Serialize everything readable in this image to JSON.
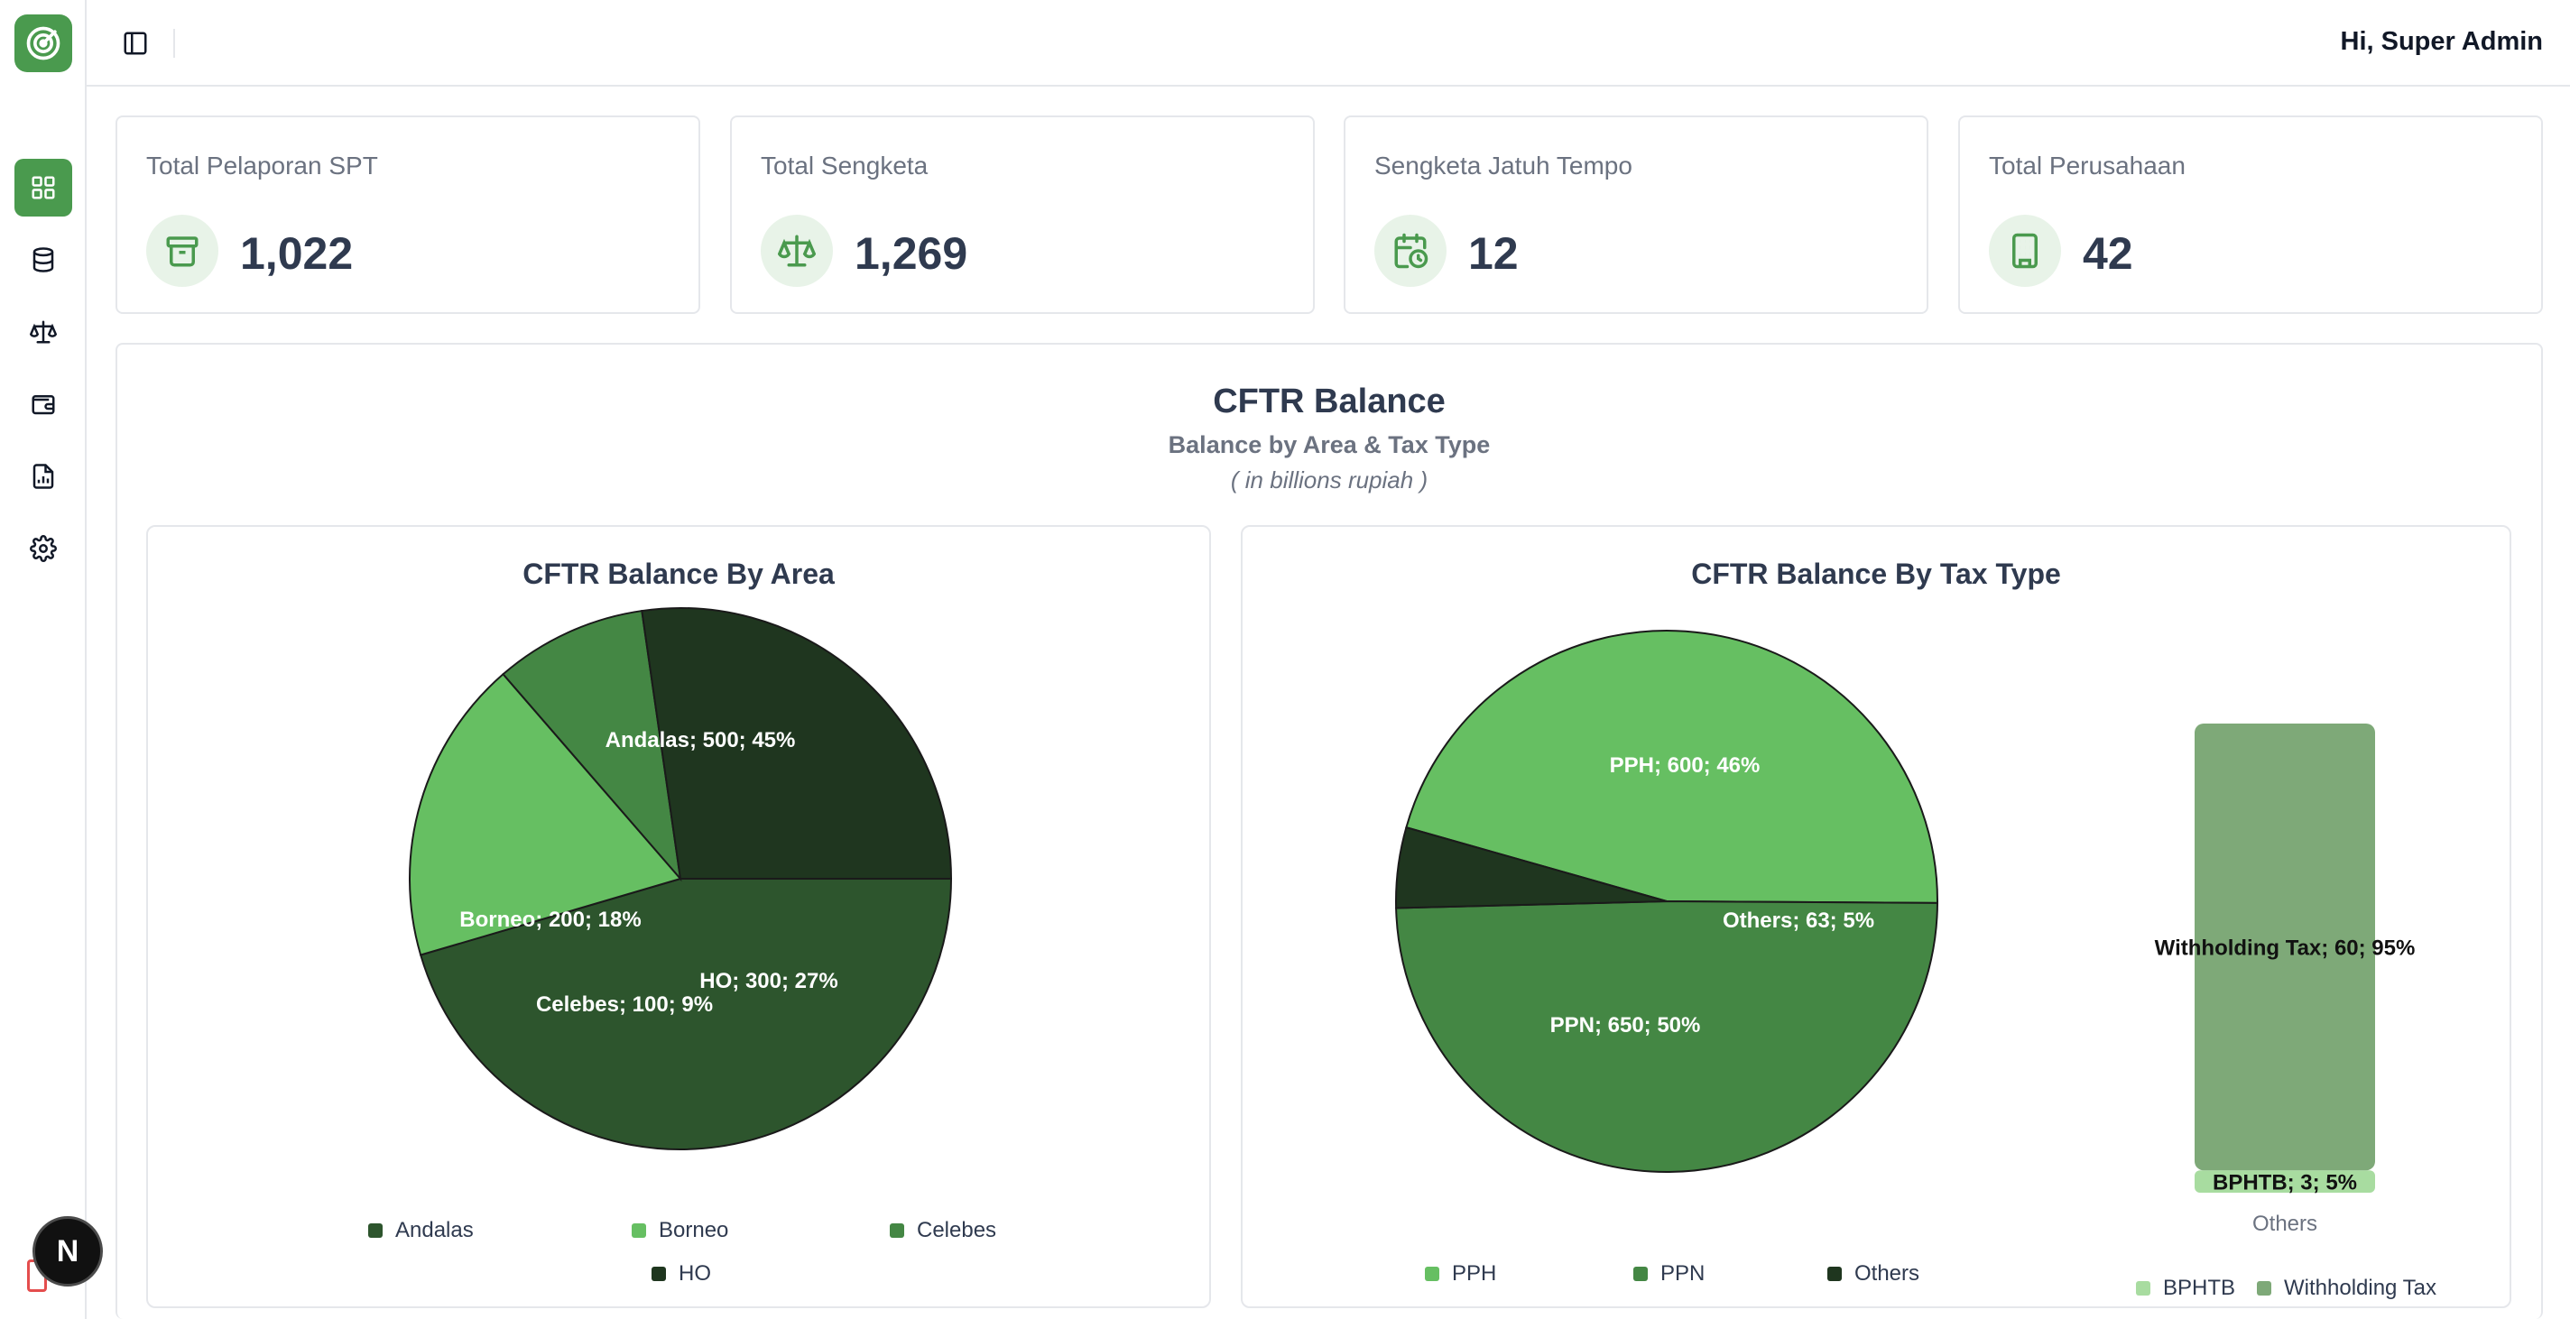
{
  "header": {
    "greeting": "Hi, Super Admin"
  },
  "stats": [
    {
      "label": "Total Pelaporan SPT",
      "value": "1,022",
      "icon": "archive-icon"
    },
    {
      "label": "Total Sengketa",
      "value": "1,269",
      "icon": "scale-icon"
    },
    {
      "label": "Sengketa Jatuh Tempo",
      "value": "12",
      "icon": "calendar-clock-icon"
    },
    {
      "label": "Total Perusahaan",
      "value": "42",
      "icon": "building-icon"
    }
  ],
  "panel": {
    "title": "CFTR Balance",
    "subtitle": "Balance by Area & Tax Type",
    "unit": "( in billions rupiah )"
  },
  "user_badge": "N",
  "colors": {
    "brand": "#4a9a4e",
    "dark_green": "#2d552d",
    "light_green": "#66bf62",
    "mid_green": "#448744",
    "darkest_green": "#1f361f",
    "bar_green": "#7ea978",
    "bar_light": "#a8dca0"
  },
  "chart_data": [
    {
      "type": "pie",
      "title": "CFTR Balance By Area",
      "slices": [
        {
          "name": "Andalas",
          "value": 500,
          "percent": 45,
          "label": "Andalas; 500; 45%",
          "color": "#2d552d"
        },
        {
          "name": "Borneo",
          "value": 200,
          "percent": 18,
          "label": "Borneo; 200; 18%",
          "color": "#66bf62"
        },
        {
          "name": "Celebes",
          "value": 100,
          "percent": 9,
          "label": "Celebes; 100; 9%",
          "color": "#448744"
        },
        {
          "name": "HO",
          "value": 300,
          "percent": 27,
          "label": "HO; 300; 27%",
          "color": "#1f361f"
        }
      ],
      "legend": [
        "Andalas",
        "Borneo",
        "Celebes",
        "HO"
      ]
    },
    {
      "type": "pie",
      "title": "CFTR Balance By Tax Type",
      "slices": [
        {
          "name": "PPH",
          "value": 600,
          "percent": 46,
          "label": "PPH; 600; 46%",
          "color": "#66bf62"
        },
        {
          "name": "PPN",
          "value": 650,
          "percent": 50,
          "label": "PPN; 650; 50%",
          "color": "#448744"
        },
        {
          "name": "Others",
          "value": 63,
          "percent": 5,
          "label": "Others; 63; 5%",
          "color": "#1f361f"
        }
      ],
      "legend": [
        "PPH",
        "PPN",
        "Others"
      ]
    },
    {
      "type": "bar",
      "stacked": true,
      "categories": [
        "Others"
      ],
      "series": [
        {
          "name": "BPHTB",
          "values": [
            3
          ],
          "percent": 5,
          "label": "BPHTB; 3; 5%",
          "color": "#a8dca0"
        },
        {
          "name": "Withholding Tax",
          "values": [
            60
          ],
          "percent": 95,
          "label": "Withholding Tax; 60; 95%",
          "color": "#7ea978"
        }
      ],
      "legend": [
        "BPHTB",
        "Withholding Tax"
      ]
    }
  ]
}
